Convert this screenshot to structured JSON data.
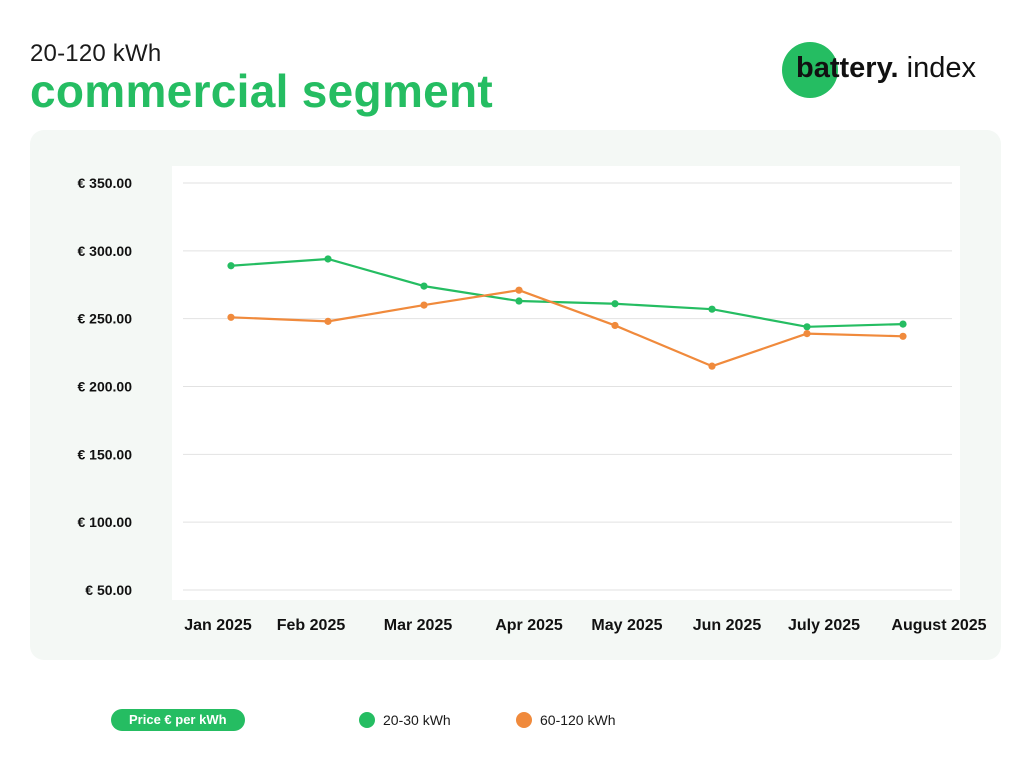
{
  "header": {
    "kicker": "20-120 kWh",
    "title": "commercial segment",
    "logo_bold": "battery.",
    "logo_light": " index"
  },
  "colors": {
    "brand_green": "#25bd62",
    "series_green": "#25bd62",
    "series_orange": "#f08a3c"
  },
  "footer": {
    "unit_pill": "Price € per kWh"
  },
  "chart_data": {
    "type": "line",
    "categories": [
      "Jan 2025",
      "Feb 2025",
      "Mar 2025",
      "Apr 2025",
      "May 2025",
      "Jun 2025",
      "July 2025",
      "August 2025"
    ],
    "series": [
      {
        "name": "20-30 kWh",
        "color": "#25bd62",
        "values": [
          289,
          294,
          274,
          263,
          261,
          257,
          244,
          246
        ]
      },
      {
        "name": "60-120 kWh",
        "color": "#f08a3c",
        "values": [
          251,
          248,
          260,
          271,
          245,
          215,
          239,
          237
        ]
      }
    ],
    "yticks": [
      "€ 350.00",
      "€ 300.00",
      "€ 250.00",
      "€ 200.00",
      "€ 150.00",
      "€ 100.00",
      "€ 50.00"
    ],
    "ytick_values": [
      350,
      300,
      250,
      200,
      150,
      100,
      50
    ],
    "ylim": [
      50,
      350
    ],
    "grid": true,
    "legend_position": "bottom",
    "xlabel": "",
    "ylabel": ""
  }
}
